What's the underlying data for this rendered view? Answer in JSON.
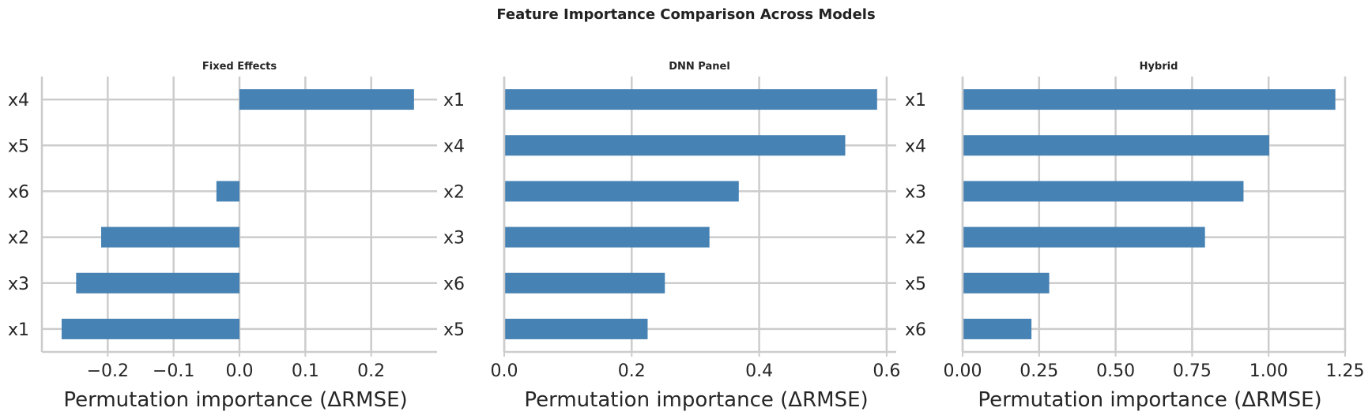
{
  "figure_title": "Feature Importance Comparison Across Models",
  "chart_data": [
    {
      "type": "bar",
      "orientation": "horizontal",
      "title": "Fixed Effects",
      "xlabel": "Permutation importance (ΔRMSE)",
      "ylabel": "",
      "categories": [
        "x1",
        "x3",
        "x2",
        "x6",
        "x5",
        "x4"
      ],
      "values": [
        -0.27,
        -0.248,
        -0.21,
        -0.035,
        0.0,
        0.265
      ],
      "xlim": [
        -0.3,
        0.3
      ],
      "xticks": [
        -0.2,
        -0.1,
        0.0,
        0.1,
        0.2
      ],
      "xticklabels": [
        "−0.2",
        "−0.1",
        "0.0",
        "0.1",
        "0.2"
      ],
      "color": "#4682b4",
      "grid": true
    },
    {
      "type": "bar",
      "orientation": "horizontal",
      "title": "DNN Panel",
      "xlabel": "Permutation importance (ΔRMSE)",
      "ylabel": "",
      "categories": [
        "x5",
        "x6",
        "x3",
        "x2",
        "x4",
        "x1"
      ],
      "values": [
        0.225,
        0.252,
        0.322,
        0.368,
        0.535,
        0.585
      ],
      "xlim": [
        0.0,
        0.615
      ],
      "xticks": [
        0.0,
        0.2,
        0.4,
        0.6
      ],
      "xticklabels": [
        "0.0",
        "0.2",
        "0.4",
        "0.6"
      ],
      "color": "#4682b4",
      "grid": true
    },
    {
      "type": "bar",
      "orientation": "horizontal",
      "title": "Hybrid",
      "xlabel": "Permutation importance (ΔRMSE)",
      "ylabel": "",
      "categories": [
        "x6",
        "x5",
        "x2",
        "x3",
        "x4",
        "x1"
      ],
      "values": [
        0.225,
        0.283,
        0.792,
        0.918,
        1.002,
        1.218
      ],
      "xlim": [
        0.0,
        1.25
      ],
      "xticks": [
        0.0,
        0.25,
        0.5,
        0.75,
        1.0,
        1.25
      ],
      "xticklabels": [
        "0.00",
        "0.25",
        "0.50",
        "0.75",
        "1.00",
        "1.25"
      ],
      "color": "#4682b4",
      "grid": true
    }
  ]
}
